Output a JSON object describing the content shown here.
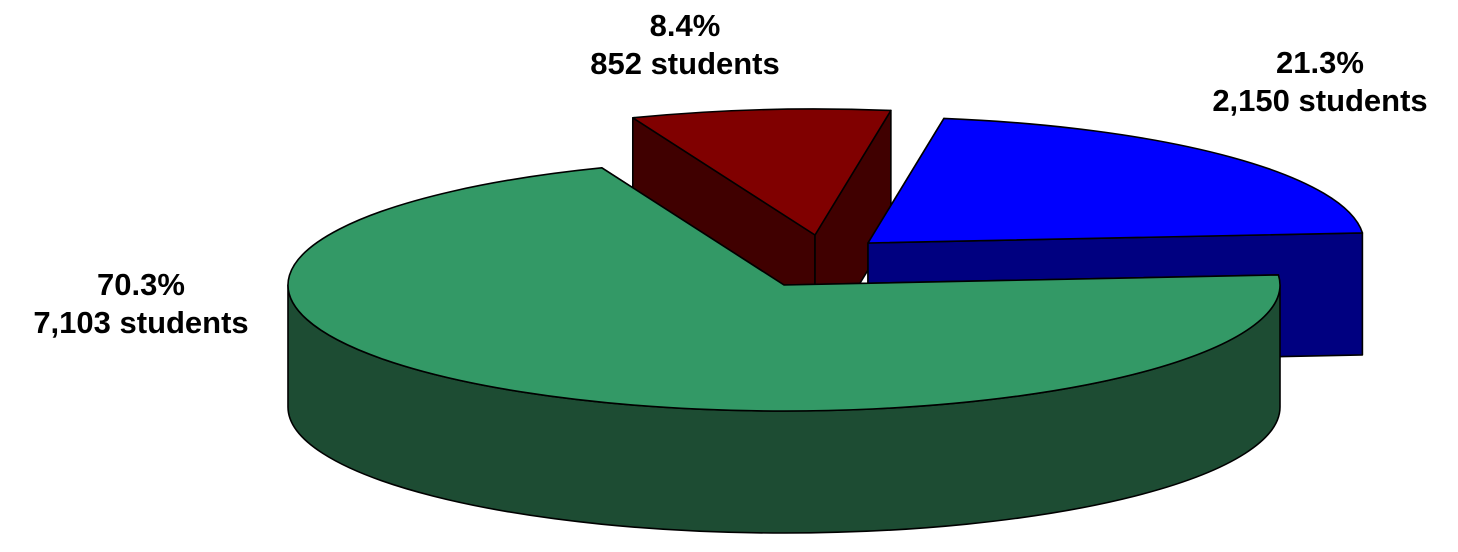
{
  "chart_data": {
    "type": "pie",
    "style": "3d-exploded",
    "unit": "students",
    "slices": [
      {
        "key": "blue",
        "percent": 21.3,
        "value": 2150,
        "percent_label": "21.3%",
        "value_label": "2,150 students",
        "top_color": "#0000FF",
        "side_color": "#000080"
      },
      {
        "key": "green",
        "percent": 70.3,
        "value": 7103,
        "percent_label": "70.3%",
        "value_label": "7,103 students",
        "top_color": "#339966",
        "side_color": "#1D4C33"
      },
      {
        "key": "red",
        "percent": 8.4,
        "value": 852,
        "percent_label": "8.4%",
        "value_label": "852 students",
        "top_color": "#800000",
        "side_color": "#400000"
      }
    ]
  }
}
